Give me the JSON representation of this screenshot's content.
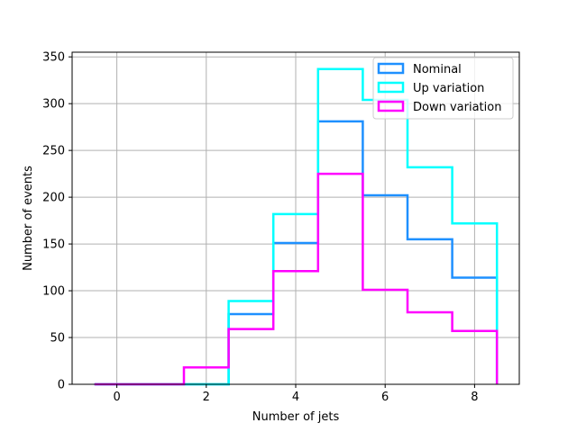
{
  "chart_data": {
    "type": "step-histogram",
    "xlabel": "Number of jets",
    "ylabel": "Number of events",
    "xlim": [
      -1,
      9
    ],
    "ylim": [
      0,
      355
    ],
    "xticks": [
      0,
      2,
      4,
      6,
      8
    ],
    "yticks": [
      0,
      50,
      100,
      150,
      200,
      250,
      300,
      350
    ],
    "grid": true,
    "legend_position": "top-right",
    "bin_edges": [
      -0.5,
      0.5,
      1.5,
      2.5,
      3.5,
      4.5,
      5.5,
      6.5,
      7.5,
      8.5
    ],
    "series": [
      {
        "name": "Nominal",
        "color": "#1e90ff",
        "values": [
          0,
          0,
          0,
          75,
          151,
          281,
          202,
          155,
          114
        ]
      },
      {
        "name": "Up variation",
        "color": "#00ffff",
        "values": [
          0,
          0,
          0,
          89,
          182,
          337,
          304,
          232,
          172
        ]
      },
      {
        "name": "Down variation",
        "color": "#ff00ff",
        "values": [
          0,
          0,
          18,
          59,
          121,
          225,
          101,
          77,
          57
        ]
      }
    ]
  }
}
